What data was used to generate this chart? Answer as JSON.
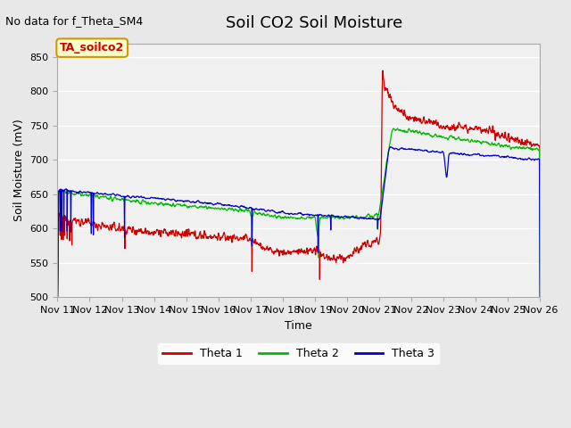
{
  "title": "Soil CO2 Soil Moisture",
  "no_data_text": "No data for f_Theta_SM4",
  "annotation_text": "TA_soilco2",
  "ylabel": "Soil Moisture (mV)",
  "xlabel": "Time",
  "ylim": [
    500,
    870
  ],
  "yticks": [
    500,
    550,
    600,
    650,
    700,
    750,
    800,
    850
  ],
  "x_labels": [
    "Nov 11",
    "Nov 12",
    "Nov 13",
    "Nov 14",
    "Nov 15",
    "Nov 16",
    "Nov 17",
    "Nov 18",
    "Nov 19",
    "Nov 20",
    "Nov 21",
    "Nov 22",
    "Nov 23",
    "Nov 24",
    "Nov 25",
    "Nov 26"
  ],
  "fig_bg_color": "#e8e8e8",
  "plot_bg_color": "#f0f0f0",
  "theta1_color": "#cc0000",
  "theta2_color": "#00bb00",
  "theta3_color": "#0000cc",
  "legend_labels": [
    "Theta 1",
    "Theta 2",
    "Theta 3"
  ],
  "annotation_bg": "#ffffcc",
  "annotation_border": "#cc9900",
  "title_fontsize": 13,
  "axis_fontsize": 9,
  "tick_fontsize": 8
}
